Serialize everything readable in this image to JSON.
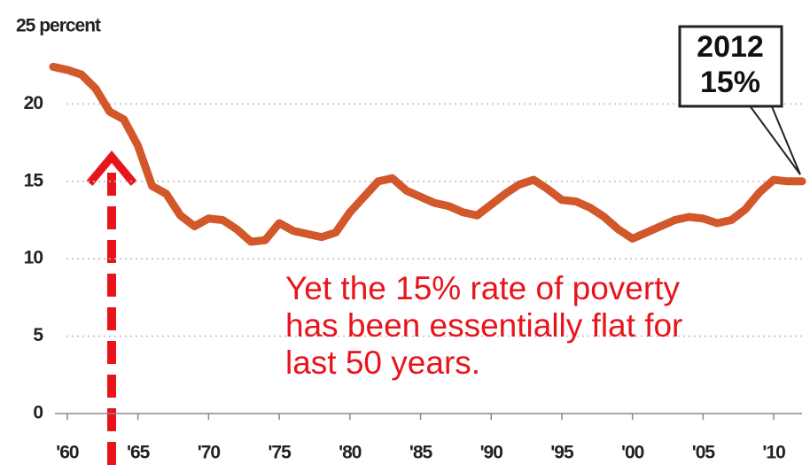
{
  "chart_data": {
    "type": "line",
    "x": [
      1959,
      1960,
      1961,
      1962,
      1963,
      1964,
      1965,
      1966,
      1967,
      1968,
      1969,
      1970,
      1971,
      1972,
      1973,
      1974,
      1975,
      1976,
      1977,
      1978,
      1979,
      1980,
      1981,
      1982,
      1983,
      1984,
      1985,
      1986,
      1987,
      1988,
      1989,
      1990,
      1991,
      1992,
      1993,
      1994,
      1995,
      1996,
      1997,
      1998,
      1999,
      2000,
      2001,
      2002,
      2003,
      2004,
      2005,
      2006,
      2007,
      2008,
      2009,
      2010,
      2011,
      2012
    ],
    "series": [
      {
        "color": "#d2572b",
        "values": [
          22.4,
          22.2,
          21.9,
          21.0,
          19.5,
          19.0,
          17.3,
          14.7,
          14.2,
          12.8,
          12.1,
          12.6,
          12.5,
          11.9,
          11.1,
          11.2,
          12.3,
          11.8,
          11.6,
          11.4,
          11.7,
          13.0,
          14.0,
          15.0,
          15.2,
          14.4,
          14.0,
          13.6,
          13.4,
          13.0,
          12.8,
          13.5,
          14.2,
          14.8,
          15.1,
          14.5,
          13.8,
          13.7,
          13.3,
          12.7,
          11.9,
          11.3,
          11.7,
          12.1,
          12.5,
          12.7,
          12.6,
          12.3,
          12.5,
          13.2,
          14.3,
          15.1,
          15.0,
          15.0
        ]
      }
    ],
    "xlim": [
      1959,
      2012
    ],
    "ylim": [
      0,
      25
    ],
    "xticks": [
      {
        "value": 1960,
        "label": "'60"
      },
      {
        "value": 1965,
        "label": "'65"
      },
      {
        "value": 1970,
        "label": "'70"
      },
      {
        "value": 1975,
        "label": "'75"
      },
      {
        "value": 1980,
        "label": "'80"
      },
      {
        "value": 1985,
        "label": "'85"
      },
      {
        "value": 1990,
        "label": "'90"
      },
      {
        "value": 1995,
        "label": "'95"
      },
      {
        "value": 2000,
        "label": "'00"
      },
      {
        "value": 2005,
        "label": "'05"
      },
      {
        "value": 2010,
        "label": "'10"
      }
    ],
    "yticks": [
      0,
      5,
      10,
      15,
      20,
      {
        "value": 25,
        "label": "25 percent"
      }
    ],
    "grid": true,
    "callout": [
      "2012",
      "15%"
    ],
    "annotation": [
      "Yet the 15% rate of poverty",
      "has been essentially flat for",
      "last 50 years."
    ]
  }
}
